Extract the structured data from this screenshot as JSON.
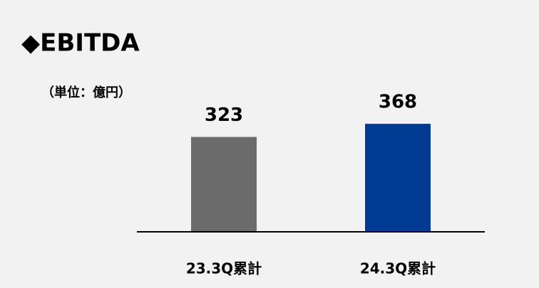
{
  "chart_data": {
    "type": "bar",
    "title": "◆EBITDA",
    "subtitle": "（単位：億円）",
    "categories": [
      "23.3Q累計",
      "24.3Q累計"
    ],
    "values": [
      323,
      368
    ],
    "colors": [
      "#6b6b6b",
      "#003a93"
    ],
    "ylim": [
      0,
      500
    ]
  }
}
